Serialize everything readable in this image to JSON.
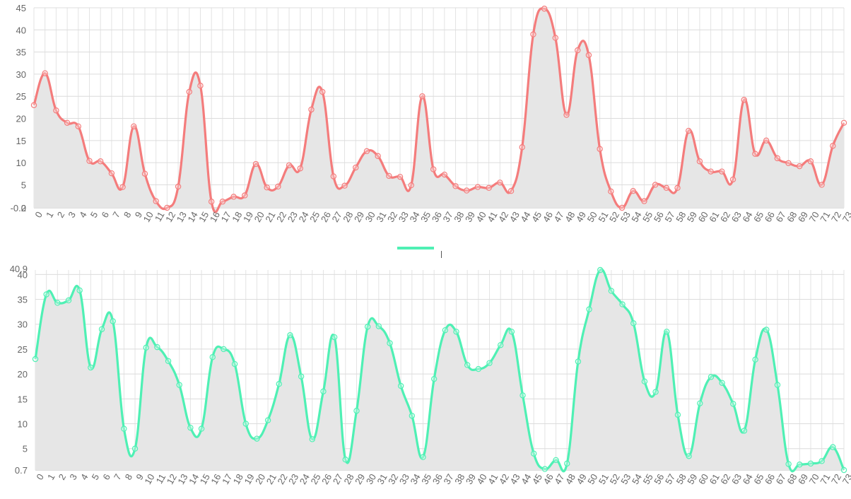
{
  "chart_data": [
    {
      "type": "area",
      "ylim": [
        -0.2,
        45
      ],
      "y_ticks": [
        5,
        10,
        15,
        20,
        25,
        30,
        35,
        40,
        45
      ],
      "y_min_labels": [
        "-0.2",
        "0"
      ],
      "grid": true,
      "line_color": "#f47c7c",
      "fill_color": "#e6e6e6",
      "categories": [
        "0",
        "1",
        "2",
        "3",
        "4",
        "5",
        "6",
        "7",
        "8",
        "9",
        "10",
        "11",
        "12",
        "13",
        "14",
        "15",
        "16",
        "17",
        "18",
        "19",
        "20",
        "21",
        "22",
        "23",
        "24",
        "25",
        "26",
        "27",
        "28",
        "29",
        "30",
        "31",
        "32",
        "33",
        "34",
        "35",
        "36",
        "37",
        "38",
        "39",
        "40",
        "41",
        "42",
        "43",
        "44",
        "45",
        "46",
        "47",
        "48",
        "49",
        "50",
        "51",
        "52",
        "53",
        "54",
        "55",
        "56",
        "57",
        "58",
        "59",
        "60",
        "61",
        "62",
        "63",
        "64",
        "65",
        "66",
        "67",
        "68",
        "69",
        "70",
        "71",
        "72",
        "73"
      ],
      "series": [
        {
          "values": [
            23,
            30.2,
            21.8,
            19,
            18.2,
            10.4,
            10.3,
            7.6,
            4.5,
            18.2,
            7.5,
            1.3,
            -0.2,
            4.6,
            26,
            27.4,
            1.2,
            1.2,
            2.3,
            2.6,
            9.7,
            4.4,
            4.6,
            9.4,
            8.7,
            22,
            26,
            6.9,
            4.8,
            8.9,
            12.6,
            11.5,
            7,
            6.8,
            4.9,
            25,
            8.5,
            7.3,
            4.7,
            3.7,
            4.5,
            4.3,
            5.5,
            3.6,
            13.5,
            39,
            44.8,
            38.2,
            20.8,
            35.4,
            34.3,
            13.1,
            3.5,
            -0.2,
            3.6,
            1.3,
            5,
            4.3,
            4.3,
            17.2,
            10.3,
            8,
            8,
            6.2,
            24.2,
            12,
            15,
            11,
            9.9,
            9.2,
            10.3,
            5,
            13.8,
            19
          ]
        }
      ]
    },
    {
      "type": "area",
      "ylim": [
        0.7,
        40.9
      ],
      "y_ticks": [
        5,
        10,
        15,
        20,
        25,
        30,
        35,
        40
      ],
      "y_min_labels": [
        "0.7"
      ],
      "y_max_label": "40.9",
      "grid": true,
      "line_color": "#4ff0b4",
      "fill_color": "#e6e6e6",
      "categories": [
        "0",
        "1",
        "2",
        "3",
        "4",
        "5",
        "6",
        "7",
        "8",
        "9",
        "10",
        "11",
        "12",
        "13",
        "14",
        "15",
        "16",
        "17",
        "18",
        "19",
        "20",
        "21",
        "22",
        "23",
        "24",
        "25",
        "26",
        "27",
        "28",
        "29",
        "30",
        "31",
        "32",
        "33",
        "34",
        "35",
        "36",
        "37",
        "38",
        "39",
        "40",
        "41",
        "42",
        "43",
        "44",
        "45",
        "46",
        "47",
        "48",
        "49",
        "50",
        "51",
        "52",
        "53",
        "54",
        "55",
        "56",
        "57",
        "58",
        "59",
        "60",
        "61",
        "62",
        "63",
        "64",
        "65",
        "66",
        "67",
        "68",
        "69",
        "70",
        "71",
        "72",
        "73"
      ],
      "series": [
        {
          "values": [
            23,
            36,
            34.3,
            34.8,
            36.8,
            21.3,
            29,
            30.6,
            9,
            5,
            25.3,
            25.4,
            22.6,
            17.8,
            9.2,
            9,
            23.4,
            25,
            22,
            10,
            7,
            10.7,
            18,
            27.8,
            19.5,
            6.9,
            16.5,
            27.4,
            2.8,
            12.6,
            29.5,
            29.6,
            26.2,
            17.6,
            11.6,
            3.3,
            19,
            28.8,
            28.5,
            21.8,
            21,
            22.2,
            25.8,
            28.5,
            15.7,
            4,
            0.9,
            2.7,
            2,
            22.5,
            33,
            40.9,
            36.7,
            34,
            30.2,
            18.5,
            16.4,
            28.5,
            11.8,
            3.5,
            14.1,
            19.4,
            18.2,
            14,
            8.6,
            22.9,
            28.9,
            17.8,
            1.9,
            1.8,
            2,
            2.5,
            5.3,
            0.7
          ]
        }
      ]
    }
  ]
}
